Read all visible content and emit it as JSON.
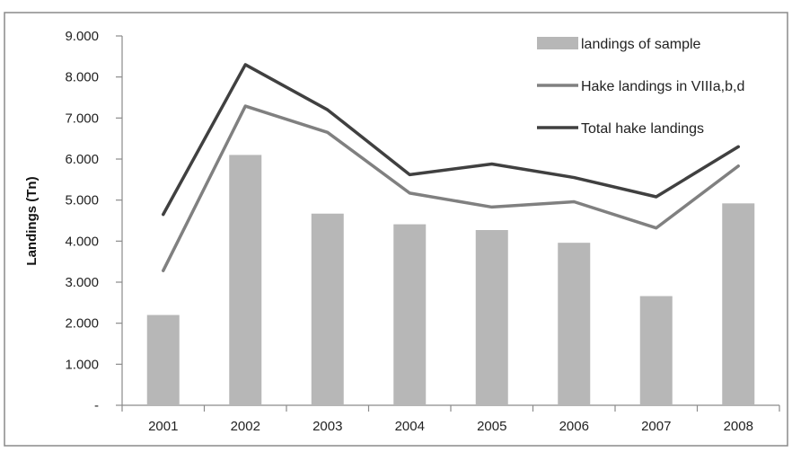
{
  "chart_data": {
    "type": "bar",
    "categories": [
      "2001",
      "2002",
      "2003",
      "2004",
      "2005",
      "2006",
      "2007",
      "2008"
    ],
    "series": [
      {
        "name": "landings of sample",
        "kind": "bar",
        "color": "#b7b7b7",
        "values": [
          2200,
          6100,
          4670,
          4410,
          4270,
          3960,
          2660,
          4920
        ]
      },
      {
        "name": "Hake landings in VIIIa,b,d",
        "kind": "line",
        "color": "#808080",
        "values": [
          3280,
          7290,
          6650,
          5170,
          4830,
          4960,
          4320,
          5830
        ]
      },
      {
        "name": "Total hake landings",
        "kind": "line",
        "color": "#404040",
        "values": [
          4650,
          8300,
          7200,
          5620,
          5880,
          5550,
          5080,
          6300
        ]
      }
    ],
    "title": "",
    "xlabel": "",
    "ylabel": "Landings (Tn)",
    "ylim": [
      0,
      9000
    ],
    "yticks": [
      0,
      1000,
      2000,
      3000,
      4000,
      5000,
      6000,
      7000,
      8000,
      9000
    ],
    "ytick_labels": [
      "-",
      "1.000",
      "2.000",
      "3.000",
      "4.000",
      "5.000",
      "6.000",
      "7.000",
      "8.000",
      "9.000"
    ],
    "grid": false,
    "legend": "top-right",
    "colors": {
      "frame": "#8a8a8a",
      "axis": "#8a8a8a",
      "text": "#222222"
    }
  }
}
